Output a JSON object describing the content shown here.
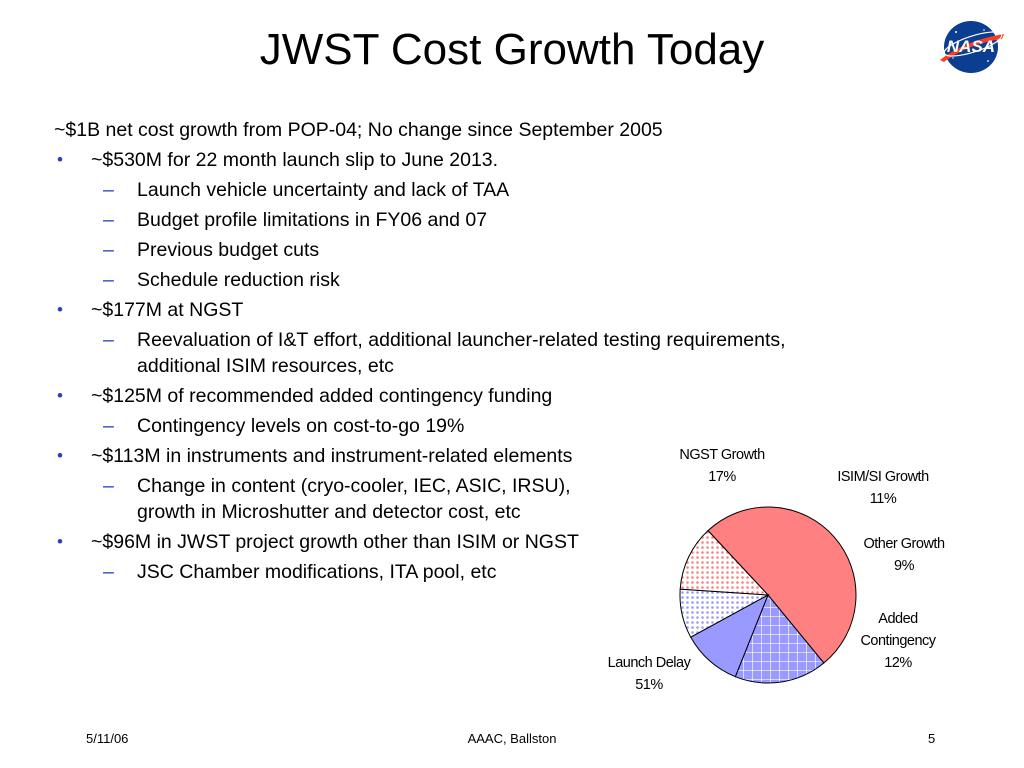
{
  "slide": {
    "title": "JWST Cost Growth Today",
    "intro": "~$1B net cost growth from POP-04; No change since September 2005",
    "bullet_marker": "•",
    "dash_marker": "–",
    "bullets": [
      {
        "text": "~$530M for 22 month launch slip to June 2013.",
        "subs": [
          "Launch vehicle uncertainty and lack of TAA",
          "Budget profile limitations in FY06 and 07",
          "Previous budget cuts",
          "Schedule reduction risk"
        ]
      },
      {
        "text": "~$177M at NGST",
        "subs": [
          "Reevaluation of I&T effort, additional launcher-related testing requirements,",
          "additional ISIM resources, etc"
        ]
      },
      {
        "text": "~$125M of recommended added contingency funding",
        "subs": [
          "Contingency levels on cost-to-go 19%"
        ]
      },
      {
        "text": "~$113M in instruments and instrument-related elements",
        "subs": [
          "Change in content (cryo-cooler, IEC, ASIC, IRSU),",
          "growth in Microshutter and detector cost, etc"
        ]
      },
      {
        "text": "~$96M in JWST project growth other than ISIM or NGST",
        "subs": [
          "JSC Chamber modifications, ITA pool, etc"
        ]
      }
    ]
  },
  "logo": {
    "text": "NASA",
    "colors": {
      "sphere": "#0b3d91",
      "chevron": "#fc3d21"
    }
  },
  "chart_data": {
    "type": "pie",
    "slices": [
      {
        "name": "Launch Delay",
        "label": "51%",
        "value": 51,
        "color": "#ff8080",
        "pattern": "none"
      },
      {
        "name": "NGST Growth",
        "label": "17%",
        "value": 17,
        "color": "#9999ff",
        "pattern": "grid"
      },
      {
        "name": "ISIM/SI Growth",
        "label": "11%",
        "value": 11,
        "color": "#9999ff",
        "pattern": "none"
      },
      {
        "name": "Other Growth",
        "label": "9%",
        "value": 9,
        "color": "#9999ff",
        "pattern": "dots"
      },
      {
        "name": "Added Contingency",
        "label": "12%",
        "value": 12,
        "color": "#ff8080",
        "pattern": "dots"
      }
    ]
  },
  "footer": {
    "date": "5/11/06",
    "center": "AAAC, Ballston",
    "page": "5"
  }
}
